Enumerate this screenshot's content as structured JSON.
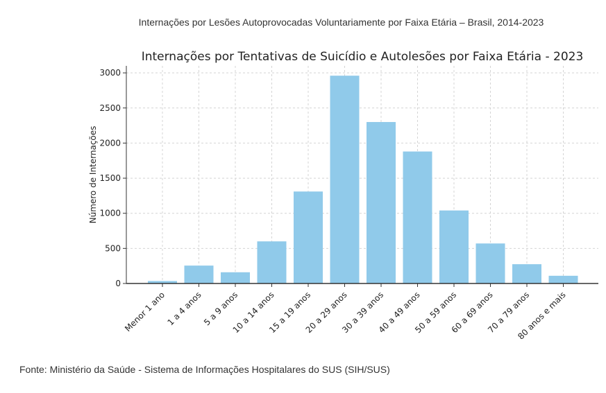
{
  "header": {
    "caption": "Internações por Lesões Autoprovocadas Voluntariamente por Faixa Etária – Brasil, 2014-2023"
  },
  "footer": {
    "source": "Fonte: Ministério da Saúde - Sistema de Informações Hospitalares do SUS (SIH/SUS)"
  },
  "colors": {
    "bar": "#90CAEA",
    "grid": "#d4d4d4",
    "axis": "#333333"
  },
  "chart_data": {
    "type": "bar",
    "title": "Internações por Tentativas de Suicídio e Autolesões por Faixa Etária - 2023",
    "xlabel": "",
    "ylabel": "Número de Internações",
    "categories": [
      "Menor 1 ano",
      "1 a 4 anos",
      "5 a 9 anos",
      "10 a 14 anos",
      "15 a 19 anos",
      "20 a 29 anos",
      "30 a 39 anos",
      "40 a 49 anos",
      "50 a 59 anos",
      "60 a 69 anos",
      "70 a 79 anos",
      "80 anos e mais"
    ],
    "values": [
      35,
      255,
      160,
      600,
      1310,
      2960,
      2300,
      1880,
      1040,
      570,
      275,
      110
    ],
    "ylim": [
      0,
      3100
    ],
    "yticks": [
      0,
      500,
      1000,
      1500,
      2000,
      2500,
      3000
    ],
    "grid": true,
    "legend": "none"
  }
}
